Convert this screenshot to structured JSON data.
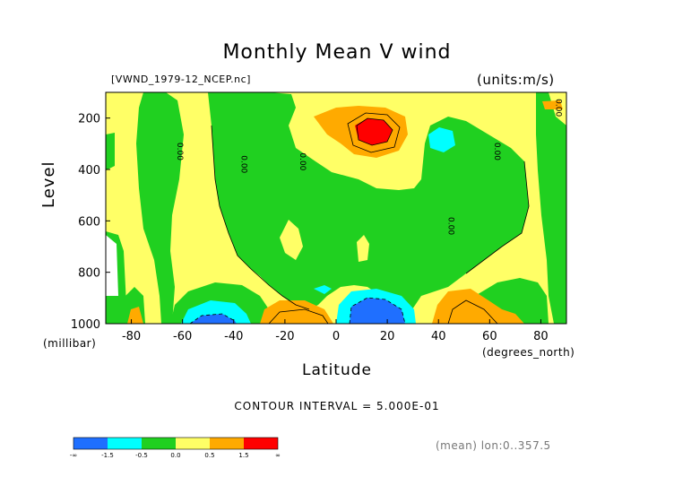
{
  "chart_data": {
    "type": "heatmap",
    "title": "Monthly Mean V wind",
    "file_label": "[VWND_1979-12_NCEP.nc]",
    "units_label": "(units:m/s)",
    "xlabel": "Latitude",
    "x_unit": "(degrees_north)",
    "ylabel": "Level",
    "y_unit": "(millibar)",
    "xlim": [
      -90,
      90
    ],
    "ylim": [
      1000,
      100
    ],
    "x_ticks": [
      -80,
      -60,
      -40,
      -20,
      0,
      20,
      40,
      60,
      80
    ],
    "y_ticks": [
      200,
      400,
      600,
      800,
      1000
    ],
    "contour_interval_text": "CONTOUR INTERVAL = 5.000E-01",
    "footer_note": "(mean) lon:0..357.5",
    "contour_labels": [
      {
        "text": "0.00",
        "lat": -62,
        "level": 330,
        "vertical": true
      },
      {
        "text": "0.00",
        "lat": -37,
        "level": 380,
        "vertical": true
      },
      {
        "text": "0.00",
        "lat": -14,
        "level": 370,
        "vertical": true
      },
      {
        "text": "0.00",
        "lat": 44,
        "level": 620,
        "vertical": true
      },
      {
        "text": "0.00",
        "lat": 62,
        "level": 330,
        "vertical": true
      },
      {
        "text": "0.00",
        "lat": 86,
        "level": 160,
        "vertical": true
      }
    ],
    "colorbar": {
      "colors": [
        "#1f6fff",
        "#00ffff",
        "#20d020",
        "#ffff66",
        "#ffaa00",
        "#ff0000"
      ],
      "labels": [
        "-∞",
        "-1.5",
        "-0.5",
        "0.0",
        "0.5",
        "1.5",
        "∞"
      ]
    },
    "legend_placement": "bottom-left",
    "grid": false
  }
}
